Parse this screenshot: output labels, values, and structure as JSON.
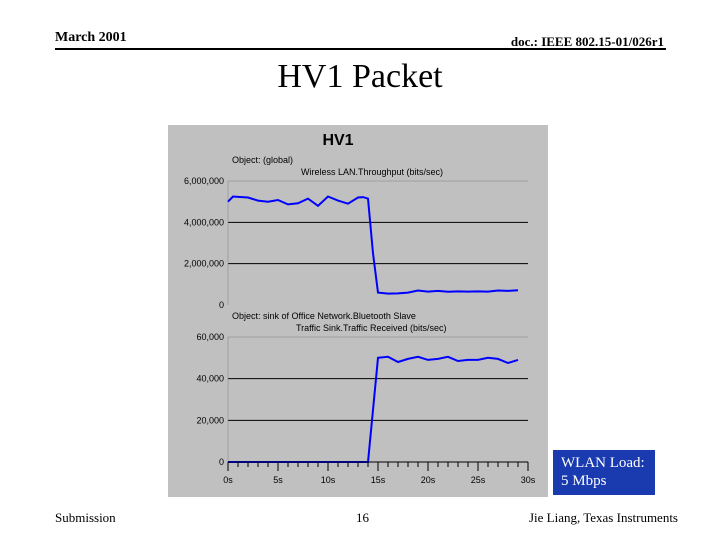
{
  "header": {
    "date": "March 2001",
    "doc_id": "doc.: IEEE 802.15-01/026r1"
  },
  "slide": {
    "title": "HV1 Packet"
  },
  "footer": {
    "left": "Submission",
    "page": "16",
    "right": "Jie Liang, Texas Instruments"
  },
  "callout": {
    "line1": "WLAN Load:",
    "line2": "5 Mbps"
  },
  "colors": {
    "chart_bg": "#c0c0c0",
    "series_line": "#0000ff",
    "callout_bg": "#1a3bb0"
  },
  "chart_data": [
    {
      "type": "line",
      "title": "HV1",
      "annotation_lines": [
        "Object: (global)",
        "Wireless LAN.Throughput (bits/sec)"
      ],
      "ylim": [
        0,
        6000000
      ],
      "ytick_labels": [
        "6,000,000",
        "4,000,000",
        "2,000,000",
        "0"
      ],
      "yticks": [
        6000000,
        4000000,
        2000000,
        0
      ],
      "grid": true,
      "series": [
        {
          "x": [
            0,
            0.5,
            1,
            2,
            3,
            4,
            5,
            6,
            7,
            8,
            9,
            10,
            11,
            12,
            13,
            13.5,
            14,
            14.5,
            15,
            16,
            17,
            18,
            19,
            20,
            21,
            22,
            23,
            24,
            25,
            26,
            27,
            28,
            29
          ],
          "y": [
            5000000,
            5250000,
            5230000,
            5200000,
            5050000,
            5000000,
            5080000,
            4870000,
            4920000,
            5150000,
            4800000,
            5250000,
            5050000,
            4900000,
            5200000,
            5220000,
            5150000,
            2500000,
            600000,
            550000,
            560000,
            600000,
            700000,
            650000,
            680000,
            640000,
            660000,
            650000,
            660000,
            650000,
            700000,
            680000,
            710000
          ]
        }
      ]
    },
    {
      "type": "line",
      "title": "",
      "annotation_lines": [
        "Object: sink of Office Network.Bluetooth Slave",
        "Traffic Sink.Traffic Received (bits/sec)"
      ],
      "ylim": [
        0,
        60000
      ],
      "ytick_labels": [
        "60,000",
        "40,000",
        "20,000",
        "0"
      ],
      "yticks": [
        60000,
        40000,
        20000,
        0
      ],
      "xlim": [
        0,
        30
      ],
      "xtick_labels": [
        "0s",
        "5s",
        "10s",
        "15s",
        "20s",
        "25s",
        "30s"
      ],
      "xticks": [
        0,
        5,
        10,
        15,
        20,
        25,
        30
      ],
      "grid": true,
      "series": [
        {
          "x": [
            0,
            1,
            2,
            3,
            4,
            5,
            6,
            7,
            8,
            9,
            10,
            11,
            12,
            13,
            14,
            14.5,
            15,
            16,
            17,
            18,
            19,
            20,
            21,
            22,
            23,
            24,
            25,
            26,
            27,
            28,
            29
          ],
          "y": [
            0,
            0,
            0,
            0,
            0,
            0,
            0,
            0,
            0,
            0,
            0,
            0,
            0,
            0,
            0,
            25000,
            50000,
            50500,
            48000,
            49500,
            50500,
            49000,
            49500,
            50500,
            48500,
            49000,
            49000,
            50000,
            49500,
            47500,
            49000
          ]
        }
      ]
    }
  ]
}
